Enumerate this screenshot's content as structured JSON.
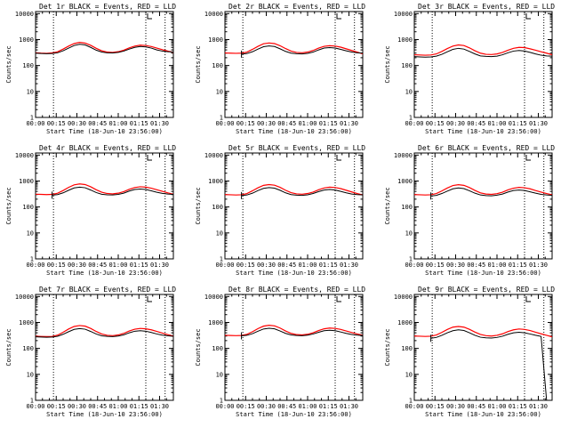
{
  "chart_data": {
    "type": "line",
    "panel_count": 9,
    "xlabel": "Start Time (18-Jun-10 23:56:00)",
    "ylabel": "Counts/sec",
    "yscale": "log",
    "ylim": [
      1,
      12000
    ],
    "xlim_minutes": [
      0,
      100
    ],
    "x_ticks": [
      "00:00",
      "00:15",
      "00:30",
      "00:45",
      "01:00",
      "01:15",
      "01:30"
    ],
    "x_tick_minutes": [
      0,
      15,
      30,
      45,
      60,
      75,
      90
    ],
    "y_ticks": [
      "1",
      "10",
      "100",
      "1000",
      "10000"
    ],
    "y_tick_values": [
      1,
      10,
      100,
      1000,
      10000
    ],
    "x_minutes": [
      0,
      4,
      8,
      12,
      16,
      20,
      24,
      28,
      32,
      36,
      40,
      44,
      48,
      52,
      56,
      60,
      64,
      68,
      72,
      76,
      80,
      84,
      88,
      92,
      96,
      100
    ],
    "legend": [
      {
        "label": "BLACK = Events",
        "color": "#000000"
      },
      {
        "label": "RED = LLD",
        "color": "#ff0000"
      }
    ],
    "panels": [
      {
        "title": "Det 1r BLACK = Events, RED = LLD",
        "marker_minutes": [
          13,
          80,
          94
        ],
        "black_starts_minutes": 0,
        "series": [
          {
            "name": "Events",
            "color": "#000000",
            "values": [
              300,
              290,
              285,
              290,
              310,
              370,
              470,
              590,
              660,
              620,
              500,
              390,
              330,
              310,
              305,
              320,
              360,
              430,
              500,
              540,
              520,
              470,
              400,
              360,
              340,
              330
            ]
          },
          {
            "name": "LLD",
            "color": "#ff0000",
            "values": [
              310,
              300,
              295,
              305,
              340,
              430,
              560,
              700,
              780,
              730,
              600,
              460,
              370,
              330,
              320,
              340,
              390,
              480,
              560,
              610,
              590,
              540,
              470,
              410,
              360,
              320
            ]
          }
        ]
      },
      {
        "title": "Det 2r BLACK = Events, RED = LLD",
        "marker_minutes": [
          13,
          80,
          94
        ],
        "black_starts_minutes": 12,
        "series": [
          {
            "name": "Events",
            "color": "#000000",
            "values": [
              280,
              275,
              270,
              275,
              290,
              340,
              430,
              530,
              570,
              540,
              440,
              350,
              300,
              285,
              280,
              295,
              330,
              400,
              470,
              490,
              470,
              420,
              370,
              330,
              310,
              300
            ]
          },
          {
            "name": "LLD",
            "color": "#ff0000",
            "values": [
              305,
              300,
              295,
              300,
              330,
              420,
              550,
              690,
              740,
              700,
              580,
              450,
              360,
              320,
              310,
              330,
              380,
              470,
              550,
              580,
              560,
              510,
              440,
              380,
              330,
              280
            ]
          }
        ]
      },
      {
        "title": "Det 3r BLACK = Events, RED = LLD",
        "marker_minutes": [
          13,
          80,
          94
        ],
        "black_starts_minutes": 0,
        "series": [
          {
            "name": "Events",
            "color": "#000000",
            "values": [
              220,
              215,
              210,
              215,
              230,
              270,
              340,
              420,
              460,
              430,
              350,
              280,
              235,
              225,
              220,
              230,
              260,
              310,
              360,
              380,
              360,
              320,
              280,
              250,
              235,
              230
            ]
          },
          {
            "name": "LLD",
            "color": "#ff0000",
            "values": [
              260,
              255,
              250,
              255,
              280,
              350,
              450,
              560,
              620,
              590,
              480,
              370,
              300,
              270,
              265,
              280,
              320,
              390,
              460,
              500,
              490,
              440,
              390,
              340,
              300,
              260
            ]
          }
        ]
      },
      {
        "title": "Det 4r BLACK = Events, RED = LLD",
        "marker_minutes": [
          13,
          80,
          94
        ],
        "black_starts_minutes": 12,
        "series": [
          {
            "name": "Events",
            "color": "#000000",
            "values": [
              290,
              285,
              280,
              285,
              300,
              350,
              440,
              540,
              580,
              550,
              450,
              360,
              310,
              295,
              290,
              305,
              340,
              410,
              470,
              490,
              470,
              420,
              370,
              335,
              315,
              305
            ]
          },
          {
            "name": "LLD",
            "color": "#ff0000",
            "values": [
              310,
              305,
              300,
              305,
              340,
              430,
              570,
              710,
              770,
              730,
              600,
              460,
              370,
              330,
              320,
              340,
              390,
              480,
              560,
              600,
              580,
              530,
              460,
              400,
              350,
              310
            ]
          }
        ]
      },
      {
        "title": "Det 5r BLACK = Events, RED = LLD",
        "marker_minutes": [
          13,
          80,
          94
        ],
        "black_starts_minutes": 12,
        "series": [
          {
            "name": "Events",
            "color": "#000000",
            "values": [
              280,
              275,
              270,
              275,
              290,
              340,
              430,
              520,
              560,
              530,
              440,
              350,
              300,
              285,
              280,
              295,
              330,
              390,
              450,
              470,
              450,
              400,
              350,
              315,
              300,
              290
            ]
          },
          {
            "name": "LLD",
            "color": "#ff0000",
            "values": [
              300,
              295,
              290,
              295,
              330,
              420,
              550,
              680,
              730,
              690,
              570,
              440,
              355,
              320,
              310,
              330,
              375,
              460,
              540,
              580,
              560,
              510,
              440,
              380,
              330,
              290
            ]
          }
        ]
      },
      {
        "title": "Det 6r BLACK = Events, RED = LLD",
        "marker_minutes": [
          13,
          80,
          94
        ],
        "black_starts_minutes": 12,
        "series": [
          {
            "name": "Events",
            "color": "#000000",
            "values": [
              270,
              265,
              260,
              265,
              280,
              330,
              410,
              500,
              540,
              510,
              420,
              340,
              290,
              275,
              270,
              285,
              315,
              375,
              430,
              450,
              430,
              385,
              340,
              305,
              290,
              280
            ]
          },
          {
            "name": "LLD",
            "color": "#ff0000",
            "values": [
              300,
              295,
              290,
              295,
              330,
              415,
              540,
              670,
              720,
              680,
              560,
              435,
              350,
              315,
              305,
              325,
              370,
              455,
              530,
              570,
              550,
              500,
              430,
              375,
              330,
              295
            ]
          }
        ]
      },
      {
        "title": "Det 7r BLACK = Events, RED = LLD",
        "marker_minutes": [
          13,
          80,
          94
        ],
        "black_starts_minutes": 0,
        "series": [
          {
            "name": "Events",
            "color": "#000000",
            "values": [
              280,
              275,
              270,
              275,
              295,
              350,
              440,
              540,
              580,
              550,
              450,
              360,
              305,
              290,
              285,
              300,
              335,
              400,
              460,
              480,
              460,
              410,
              360,
              325,
              305,
              295
            ]
          },
          {
            "name": "LLD",
            "color": "#ff0000",
            "values": [
              295,
              290,
              285,
              290,
              325,
              420,
              560,
              700,
              760,
              720,
              590,
              450,
              360,
              320,
              310,
              330,
              380,
              470,
              550,
              590,
              570,
              520,
              450,
              390,
              340,
              300
            ]
          }
        ]
      },
      {
        "title": "Det 8r BLACK = Events, RED = LLD",
        "marker_minutes": [
          13,
          80,
          94
        ],
        "black_starts_minutes": 12,
        "series": [
          {
            "name": "Events",
            "color": "#000000",
            "values": [
              310,
              305,
              300,
              305,
              320,
              370,
              460,
              560,
              600,
              570,
              470,
              380,
              330,
              315,
              310,
              325,
              360,
              420,
              480,
              500,
              480,
              430,
              380,
              345,
              325,
              315
            ]
          },
          {
            "name": "LLD",
            "color": "#ff0000",
            "values": [
              320,
              315,
              310,
              315,
              350,
              440,
              580,
              720,
              780,
              740,
              610,
              470,
              380,
              340,
              330,
              350,
              400,
              490,
              570,
              610,
              590,
              540,
              470,
              410,
              360,
              320
            ]
          }
        ]
      },
      {
        "title": "Det 9r BLACK = Events, RED = LLD",
        "marker_minutes": [
          13,
          80,
          94
        ],
        "black_starts_minutes": 12,
        "black_dropout_minutes": 96,
        "series": [
          {
            "name": "Events",
            "color": "#000000",
            "values": [
              250,
              245,
              240,
              245,
              265,
              320,
              400,
              480,
              520,
              490,
              400,
              320,
              270,
              255,
              250,
              265,
              295,
              350,
              400,
              420,
              400,
              360,
              320,
              290,
              1,
              1
            ]
          },
          {
            "name": "LLD",
            "color": "#ff0000",
            "values": [
              300,
              295,
              290,
              295,
              330,
              415,
              540,
              660,
              700,
              660,
              545,
              425,
              345,
              310,
              300,
              320,
              365,
              445,
              520,
              560,
              540,
              490,
              420,
              365,
              320,
              280
            ]
          }
        ]
      }
    ]
  }
}
